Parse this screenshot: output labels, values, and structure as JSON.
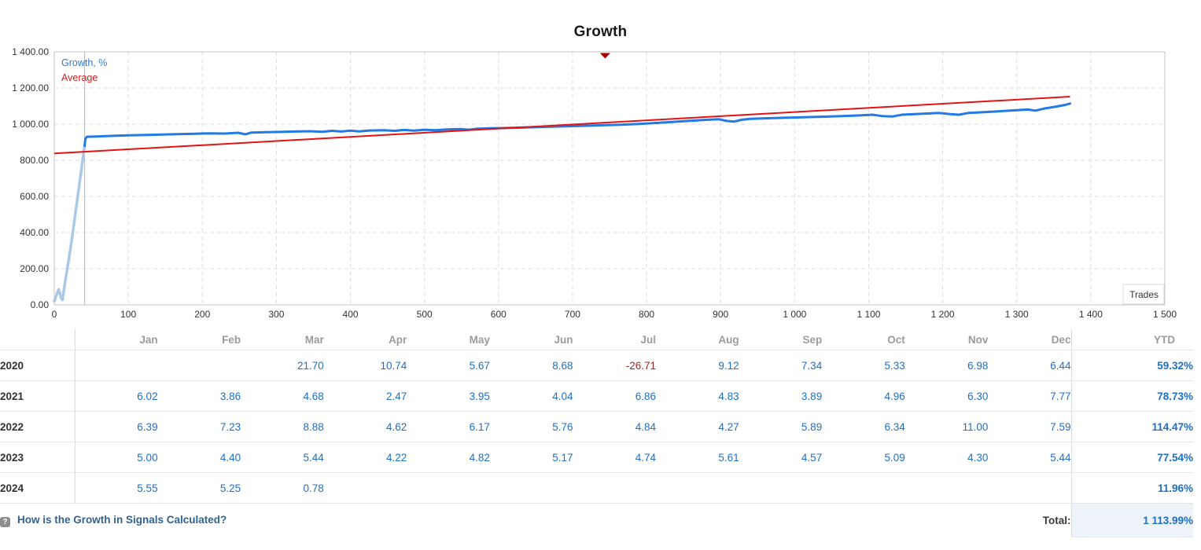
{
  "colors": {
    "growth_line": "#217ae5",
    "growth_line_light": "#aac8e8",
    "average_line": "#e51212",
    "legend_growth": "#2f7cd8",
    "legend_average": "#cc2222",
    "axis_text": "#333333",
    "grid": "#dedede",
    "plot_border": "#c6c6c6",
    "start_line": "#b8b8b8",
    "event_marker": "#a00000",
    "month_header": "#9b9b9b",
    "year_text": "#333333",
    "value_blue": "#1f6fc4",
    "negative_red": "#aa2222",
    "total_bg": "#edf3f8",
    "link_blue": "#31638f",
    "row_border": "#e6e6e6",
    "col_border": "#dddddd"
  },
  "chart_data": {
    "type": "line",
    "title": "Growth",
    "xlabel": "Trades",
    "ylabel": "",
    "xlim": [
      0,
      1500
    ],
    "ylim": [
      0,
      1400
    ],
    "grid": "dashed",
    "legend_position": "top-left",
    "x_ticks": [
      {
        "v": 0,
        "label": "0"
      },
      {
        "v": 100,
        "label": "100"
      },
      {
        "v": 200,
        "label": "200"
      },
      {
        "v": 300,
        "label": "300"
      },
      {
        "v": 400,
        "label": "400"
      },
      {
        "v": 500,
        "label": "500"
      },
      {
        "v": 600,
        "label": "600"
      },
      {
        "v": 700,
        "label": "700"
      },
      {
        "v": 800,
        "label": "800"
      },
      {
        "v": 900,
        "label": "900"
      },
      {
        "v": 1000,
        "label": "1 000"
      },
      {
        "v": 1100,
        "label": "1 100"
      },
      {
        "v": 1200,
        "label": "1 200"
      },
      {
        "v": 1300,
        "label": "1 300"
      },
      {
        "v": 1400,
        "label": "1 400"
      },
      {
        "v": 1500,
        "label": "1 500"
      }
    ],
    "y_ticks": [
      {
        "v": 0,
        "label": "0.00"
      },
      {
        "v": 200,
        "label": "200.00"
      },
      {
        "v": 400,
        "label": "400.00"
      },
      {
        "v": 600,
        "label": "600.00"
      },
      {
        "v": 800,
        "label": "800.00"
      },
      {
        "v": 1000,
        "label": "1 000.00"
      },
      {
        "v": 1200,
        "label": "1 200.00"
      },
      {
        "v": 1400,
        "label": "1 400.00"
      }
    ],
    "legend": [
      {
        "label": "Growth, %"
      },
      {
        "label": "Average"
      }
    ],
    "start_line_trade": 41,
    "event_marker": {
      "trade": 744
    },
    "series": [
      {
        "name": "Growth, %",
        "pre_points": [
          [
            0,
            20
          ],
          [
            3,
            55
          ],
          [
            6,
            85
          ],
          [
            9,
            40
          ],
          [
            11,
            28
          ],
          [
            14,
            110
          ],
          [
            17,
            185
          ],
          [
            20,
            260
          ],
          [
            24,
            370
          ],
          [
            28,
            490
          ],
          [
            32,
            610
          ],
          [
            36,
            730
          ],
          [
            39,
            820
          ],
          [
            41,
            880
          ]
        ],
        "points": [
          [
            41,
            880
          ],
          [
            42,
            918
          ],
          [
            44,
            930
          ],
          [
            60,
            932
          ],
          [
            80,
            935
          ],
          [
            100,
            938
          ],
          [
            130,
            941
          ],
          [
            160,
            944
          ],
          [
            190,
            947
          ],
          [
            210,
            949
          ],
          [
            230,
            948
          ],
          [
            248,
            952
          ],
          [
            258,
            944
          ],
          [
            266,
            953
          ],
          [
            285,
            955
          ],
          [
            305,
            957
          ],
          [
            325,
            959
          ],
          [
            345,
            961
          ],
          [
            362,
            958
          ],
          [
            375,
            963
          ],
          [
            388,
            959
          ],
          [
            400,
            964
          ],
          [
            412,
            960
          ],
          [
            425,
            965
          ],
          [
            445,
            966
          ],
          [
            460,
            963
          ],
          [
            472,
            968
          ],
          [
            486,
            964
          ],
          [
            500,
            969
          ],
          [
            515,
            966
          ],
          [
            530,
            971
          ],
          [
            548,
            973
          ],
          [
            560,
            969
          ],
          [
            572,
            975
          ],
          [
            590,
            977
          ],
          [
            615,
            979
          ],
          [
            640,
            982
          ],
          [
            665,
            985
          ],
          [
            690,
            988
          ],
          [
            715,
            991
          ],
          [
            740,
            994
          ],
          [
            765,
            997
          ],
          [
            790,
            1001
          ],
          [
            810,
            1006
          ],
          [
            830,
            1011
          ],
          [
            850,
            1016
          ],
          [
            868,
            1021
          ],
          [
            885,
            1025
          ],
          [
            898,
            1027
          ],
          [
            908,
            1018
          ],
          [
            918,
            1014
          ],
          [
            928,
            1024
          ],
          [
            940,
            1029
          ],
          [
            960,
            1032
          ],
          [
            985,
            1035
          ],
          [
            1010,
            1038
          ],
          [
            1035,
            1041
          ],
          [
            1060,
            1044
          ],
          [
            1085,
            1048
          ],
          [
            1105,
            1052
          ],
          [
            1118,
            1045
          ],
          [
            1132,
            1042
          ],
          [
            1145,
            1052
          ],
          [
            1170,
            1057
          ],
          [
            1195,
            1062
          ],
          [
            1210,
            1055
          ],
          [
            1222,
            1052
          ],
          [
            1235,
            1062
          ],
          [
            1258,
            1067
          ],
          [
            1280,
            1072
          ],
          [
            1300,
            1077
          ],
          [
            1315,
            1081
          ],
          [
            1325,
            1075
          ],
          [
            1338,
            1087
          ],
          [
            1352,
            1096
          ],
          [
            1365,
            1106
          ],
          [
            1372,
            1114
          ]
        ]
      },
      {
        "name": "Average",
        "points": [
          [
            0,
            838
          ],
          [
            1372,
            1152
          ]
        ]
      }
    ]
  },
  "table": {
    "months": [
      "Jan",
      "Feb",
      "Mar",
      "Apr",
      "May",
      "Jun",
      "Jul",
      "Aug",
      "Sep",
      "Oct",
      "Nov",
      "Dec"
    ],
    "ytd_label": "YTD",
    "rows": [
      {
        "year": "2020",
        "values": [
          "",
          "",
          "21.70",
          "10.74",
          "5.67",
          "8.68",
          "-26.71",
          "9.12",
          "7.34",
          "5.33",
          "6.98",
          "6.44"
        ],
        "ytd": "59.32%"
      },
      {
        "year": "2021",
        "values": [
          "6.02",
          "3.86",
          "4.68",
          "2.47",
          "3.95",
          "4.04",
          "6.86",
          "4.83",
          "3.89",
          "4.96",
          "6.30",
          "7.77"
        ],
        "ytd": "78.73%"
      },
      {
        "year": "2022",
        "values": [
          "6.39",
          "7.23",
          "8.88",
          "4.62",
          "6.17",
          "5.76",
          "4.84",
          "4.27",
          "5.89",
          "6.34",
          "11.00",
          "7.59"
        ],
        "ytd": "114.47%"
      },
      {
        "year": "2023",
        "values": [
          "5.00",
          "4.40",
          "5.44",
          "4.22",
          "4.82",
          "5.17",
          "4.74",
          "5.61",
          "4.57",
          "5.09",
          "4.30",
          "5.44"
        ],
        "ytd": "77.54%"
      },
      {
        "year": "2024",
        "values": [
          "5.55",
          "5.25",
          "0.78",
          "",
          "",
          "",
          "",
          "",
          "",
          "",
          "",
          ""
        ],
        "ytd": "11.96%"
      }
    ],
    "footer": {
      "help_glyph": "?",
      "link": "How is the Growth in Signals Calculated?",
      "total_label": "Total:",
      "total_value": "1 113.99%"
    }
  }
}
